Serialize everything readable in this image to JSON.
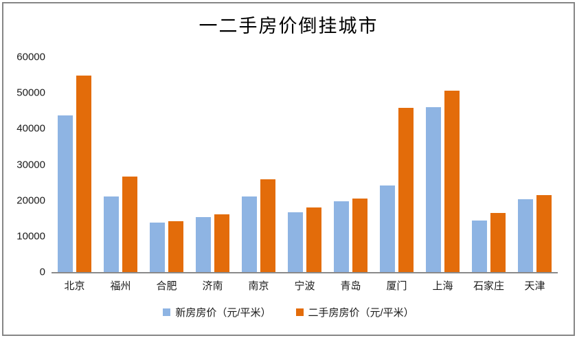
{
  "chart_data": {
    "type": "bar",
    "title": "一二手房价倒挂城市",
    "categories": [
      "北京",
      "福州",
      "合肥",
      "济南",
      "南京",
      "宁波",
      "青岛",
      "厦门",
      "上海",
      "石家庄",
      "天津"
    ],
    "series": [
      {
        "name": "新房房价（元/平米）",
        "color": "#8EB4E3",
        "values": [
          43700,
          21000,
          13900,
          15400,
          21000,
          16600,
          19800,
          24100,
          46000,
          14400,
          20300
        ]
      },
      {
        "name": "二手房房价（元/平米）",
        "color": "#E36C0A",
        "values": [
          54900,
          26600,
          14200,
          16200,
          25800,
          18000,
          20600,
          45800,
          50600,
          16400,
          21500
        ]
      }
    ],
    "xlabel": "",
    "ylabel": "",
    "ylim": [
      0,
      60000
    ],
    "yticks": [
      0,
      10000,
      20000,
      30000,
      40000,
      50000,
      60000
    ],
    "grid": false,
    "legend_position": "bottom"
  },
  "style": {
    "background": "#FFFFFF",
    "border_color": "#858585",
    "axis_line_color": "#898989",
    "text_color": "#1A1A1A",
    "bar_new_color": "#8EB4E3",
    "bar_secondhand_color": "#E36C0A"
  }
}
